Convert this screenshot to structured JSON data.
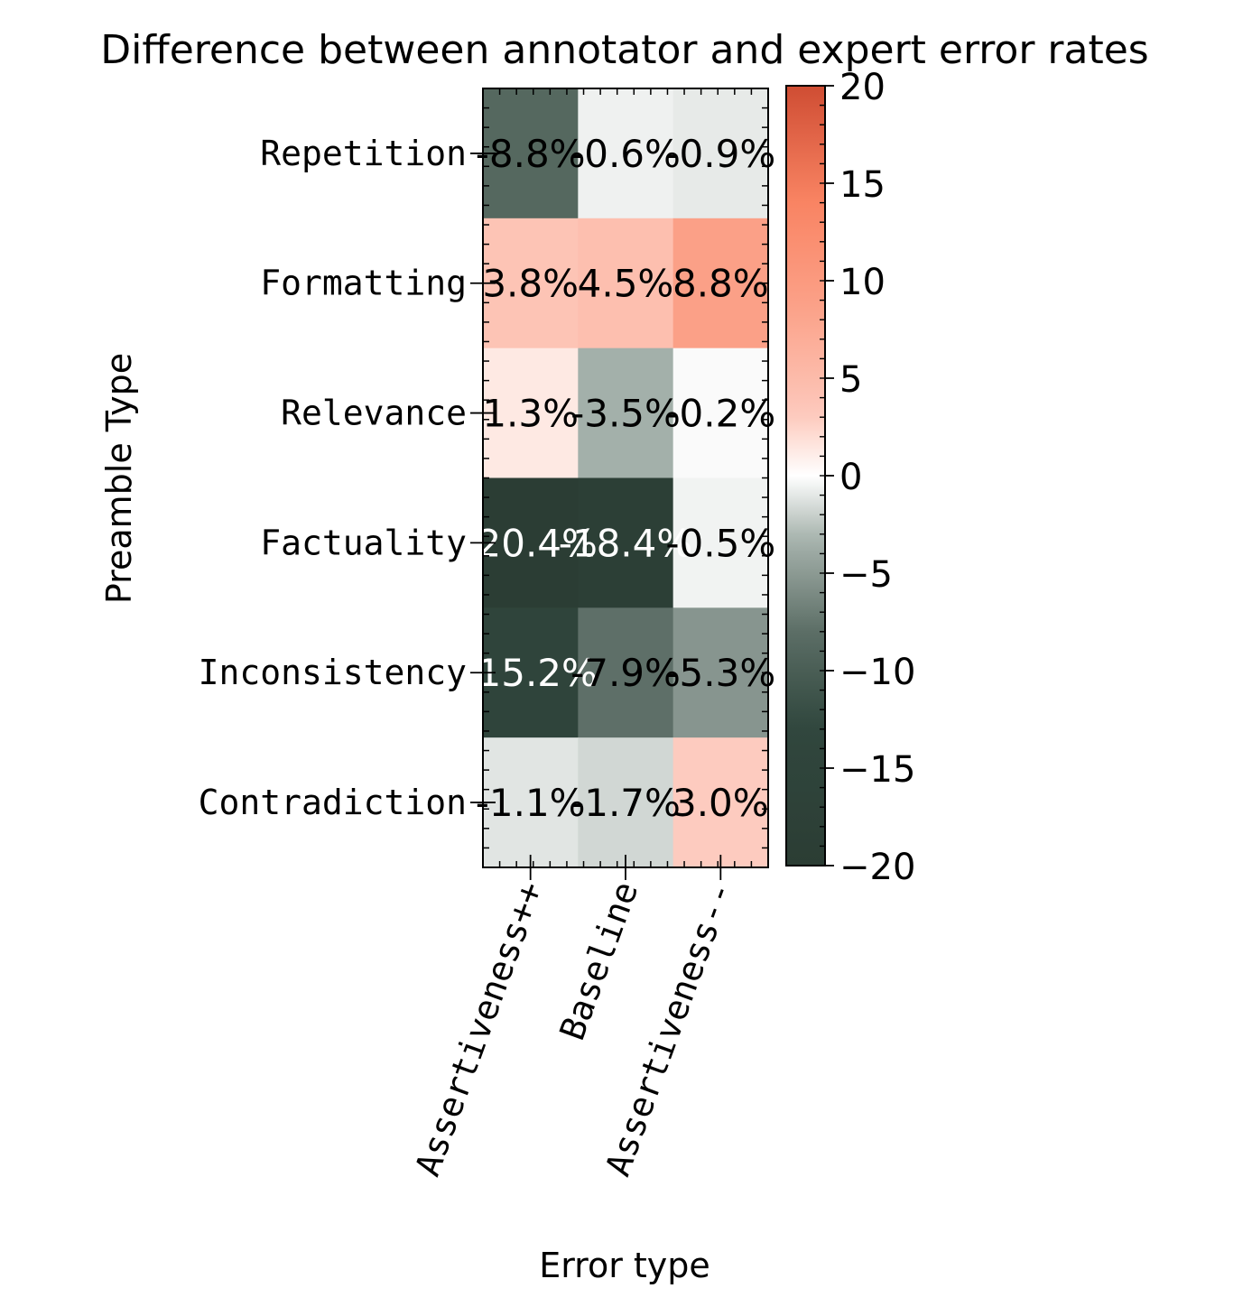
{
  "chart_data": {
    "type": "heatmap",
    "title": "Difference between annotator and expert error rates",
    "xlabel": "Error type",
    "ylabel": "Preamble Type",
    "x_categories": [
      "Assertiveness++",
      "Baseline",
      "Assertiveness--"
    ],
    "y_categories": [
      "Repetition",
      "Formatting",
      "Relevance",
      "Factuality",
      "Inconsistency",
      "Contradiction"
    ],
    "values": [
      [
        -8.8,
        -0.6,
        -0.9
      ],
      [
        3.8,
        4.5,
        8.8
      ],
      [
        1.3,
        -3.5,
        -0.2
      ],
      [
        -20.4,
        -18.4,
        -0.5
      ],
      [
        -15.2,
        -7.9,
        -5.3
      ],
      [
        -1.1,
        -1.7,
        3.0
      ]
    ],
    "cell_labels": [
      [
        "-8.8%",
        "-0.6%",
        "-0.9%"
      ],
      [
        "3.8%",
        "4.5%",
        "8.8%"
      ],
      [
        "1.3%",
        "-3.5%",
        "-0.2%"
      ],
      [
        "-20.4%",
        "-18.4%",
        "-0.5%"
      ],
      [
        "-15.2%",
        "-7.9%",
        "-5.3%"
      ],
      [
        "-1.1%",
        "-1.7%",
        "3.0%"
      ]
    ],
    "colorbar": {
      "range": [
        -20,
        20
      ],
      "ticks": [
        20,
        15,
        10,
        5,
        0,
        -5,
        -10,
        -15,
        -20
      ],
      "tick_labels": [
        "20",
        "15",
        "10",
        "5",
        "0",
        "−5",
        "−10",
        "−15",
        "−20"
      ]
    },
    "colors": {
      "negative_extreme": "#2b3d34",
      "neutral": "#ffffff",
      "positive_mid": "#f98463",
      "positive_extreme": "#cf4d33"
    },
    "grid": false,
    "legend": "colorbar-right"
  }
}
